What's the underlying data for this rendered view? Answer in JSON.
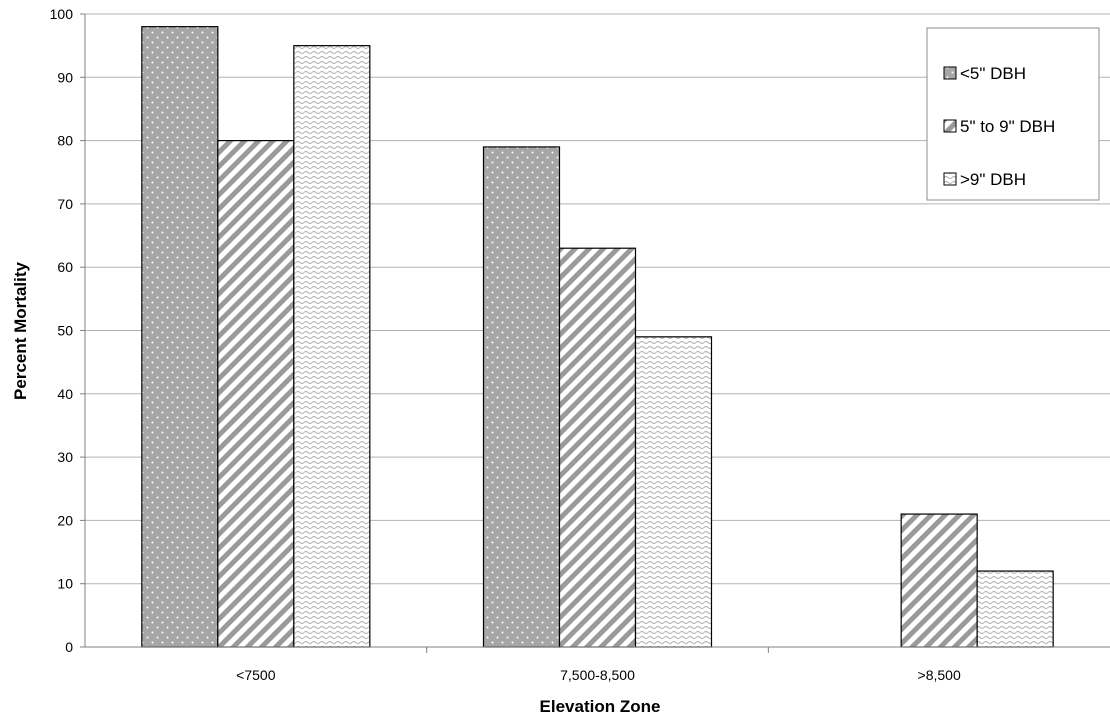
{
  "chart_data": {
    "type": "bar",
    "title": "",
    "xlabel": "Elevation Zone",
    "ylabel": "Percent Mortality",
    "categories": [
      "<7500",
      "7,500-8,500",
      ">8,500"
    ],
    "series": [
      {
        "name": "<5\" DBH",
        "values": [
          98,
          79,
          null
        ],
        "pattern": "dots"
      },
      {
        "name": "5\" to 9\" DBH",
        "values": [
          80,
          63,
          21
        ],
        "pattern": "diagonal-stripes"
      },
      {
        "name": ">9\" DBH",
        "values": [
          95,
          49,
          12
        ],
        "pattern": "waves"
      }
    ],
    "ylim": [
      0,
      100
    ],
    "yticks": [
      0,
      10,
      20,
      30,
      40,
      50,
      60,
      70,
      80,
      90,
      100
    ],
    "grid": true,
    "legend_position": "top-right"
  },
  "colors": {
    "dots_fill": "#a6a6a6",
    "stripe_color": "#9a9a9a",
    "wave_color": "#b8b8b8",
    "gridline": "#b3b3b3",
    "axis": "#808080"
  }
}
